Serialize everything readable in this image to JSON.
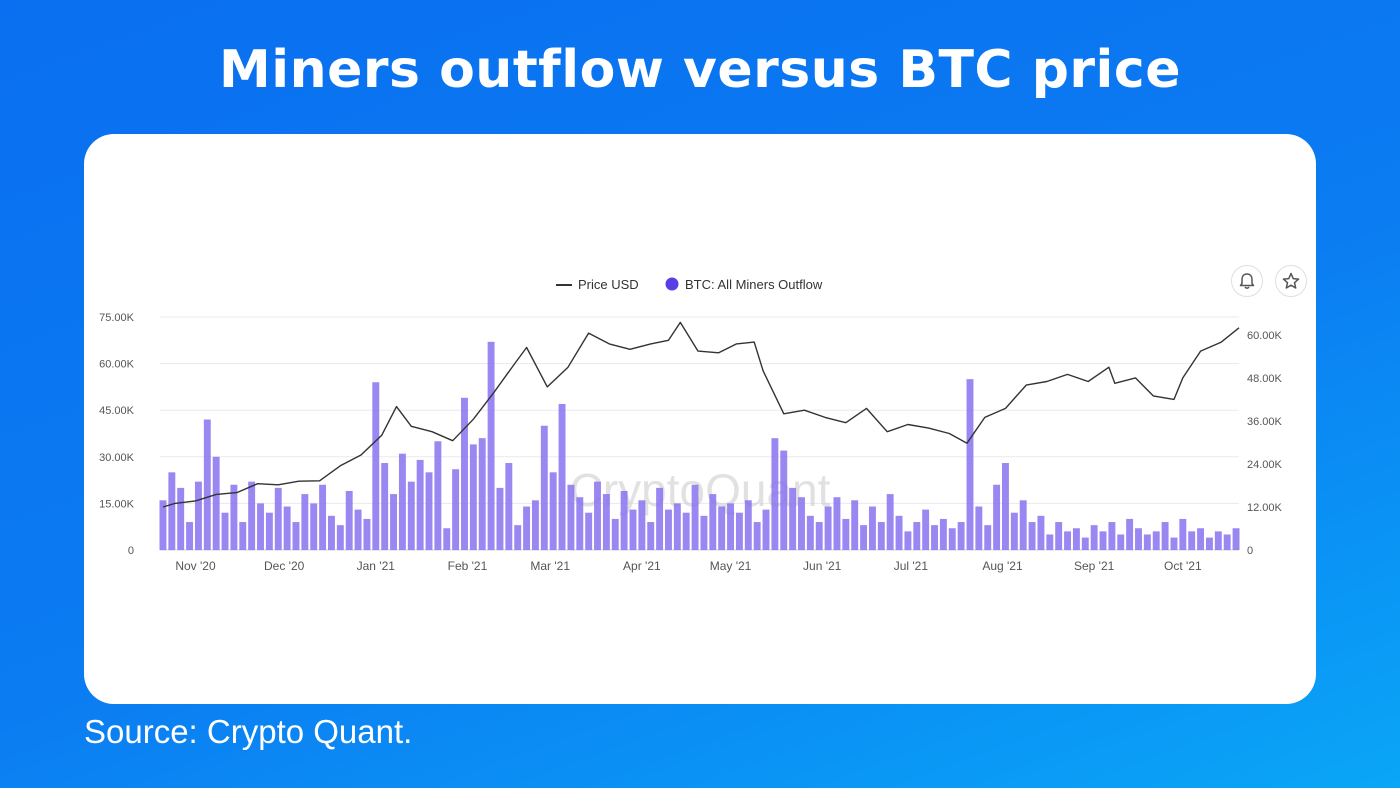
{
  "title": "Miners outflow versus BTC price",
  "source": "Source: Crypto Quant.",
  "watermark": "CryptoQuant",
  "icons": {
    "alert": "bell-icon",
    "favorite": "star-icon"
  },
  "colors": {
    "background": "#0b7cf2",
    "bar": "#8a72f0",
    "price_line": "#333333",
    "legend_dot": "#5b3de8"
  },
  "chart_data": {
    "type": "bar+line",
    "legend_position": "top-center",
    "grid": true,
    "x_range": [
      "2020-10-20",
      "2021-10-20"
    ],
    "x_ticks": [
      {
        "date": "2020-11-01",
        "label": "Nov '20"
      },
      {
        "date": "2020-12-01",
        "label": "Dec '20"
      },
      {
        "date": "2021-01-01",
        "label": "Jan '21"
      },
      {
        "date": "2021-02-01",
        "label": "Feb '21"
      },
      {
        "date": "2021-03-01",
        "label": "Mar '21"
      },
      {
        "date": "2021-04-01",
        "label": "Apr '21"
      },
      {
        "date": "2021-05-01",
        "label": "May '21"
      },
      {
        "date": "2021-06-01",
        "label": "Jun '21"
      },
      {
        "date": "2021-07-01",
        "label": "Jul '21"
      },
      {
        "date": "2021-08-01",
        "label": "Aug '21"
      },
      {
        "date": "2021-09-01",
        "label": "Sep '21"
      },
      {
        "date": "2021-10-01",
        "label": "Oct '21"
      }
    ],
    "y_left": {
      "range": [
        0,
        75000
      ],
      "ticks": [
        0,
        15000,
        30000,
        45000,
        60000,
        75000
      ],
      "tick_labels": [
        "0",
        "15.00K",
        "30.00K",
        "45.00K",
        "60.00K",
        "75.00K"
      ]
    },
    "y_right": {
      "range": [
        0,
        65000
      ],
      "ticks": [
        0,
        12000,
        24000,
        36000,
        48000,
        60000
      ],
      "tick_labels": [
        "0",
        "12.00K",
        "24.00K",
        "36.00K",
        "48.00K",
        "60.00K"
      ]
    },
    "series": [
      {
        "name": "BTC: All Miners Outflow",
        "type": "bar",
        "axis": "left",
        "x": [
          "2020-10-21",
          "2020-10-24",
          "2020-10-27",
          "2020-10-30",
          "2020-11-02",
          "2020-11-05",
          "2020-11-08",
          "2020-11-11",
          "2020-11-14",
          "2020-11-17",
          "2020-11-20",
          "2020-11-23",
          "2020-11-26",
          "2020-11-29",
          "2020-12-02",
          "2020-12-05",
          "2020-12-08",
          "2020-12-11",
          "2020-12-14",
          "2020-12-17",
          "2020-12-20",
          "2020-12-23",
          "2020-12-26",
          "2020-12-29",
          "2021-01-01",
          "2021-01-04",
          "2021-01-07",
          "2021-01-10",
          "2021-01-13",
          "2021-01-16",
          "2021-01-19",
          "2021-01-22",
          "2021-01-25",
          "2021-01-28",
          "2021-01-31",
          "2021-02-03",
          "2021-02-06",
          "2021-02-09",
          "2021-02-12",
          "2021-02-15",
          "2021-02-18",
          "2021-02-21",
          "2021-02-24",
          "2021-02-27",
          "2021-03-02",
          "2021-03-05",
          "2021-03-08",
          "2021-03-11",
          "2021-03-14",
          "2021-03-17",
          "2021-03-20",
          "2021-03-23",
          "2021-03-26",
          "2021-03-29",
          "2021-04-01",
          "2021-04-04",
          "2021-04-07",
          "2021-04-10",
          "2021-04-13",
          "2021-04-16",
          "2021-04-19",
          "2021-04-22",
          "2021-04-25",
          "2021-04-28",
          "2021-05-01",
          "2021-05-04",
          "2021-05-07",
          "2021-05-10",
          "2021-05-13",
          "2021-05-16",
          "2021-05-19",
          "2021-05-22",
          "2021-05-25",
          "2021-05-28",
          "2021-05-31",
          "2021-06-03",
          "2021-06-06",
          "2021-06-09",
          "2021-06-12",
          "2021-06-15",
          "2021-06-18",
          "2021-06-21",
          "2021-06-24",
          "2021-06-27",
          "2021-06-30",
          "2021-07-03",
          "2021-07-06",
          "2021-07-09",
          "2021-07-12",
          "2021-07-15",
          "2021-07-18",
          "2021-07-21",
          "2021-07-24",
          "2021-07-27",
          "2021-07-30",
          "2021-08-02",
          "2021-08-05",
          "2021-08-08",
          "2021-08-11",
          "2021-08-14",
          "2021-08-17",
          "2021-08-20",
          "2021-08-23",
          "2021-08-26",
          "2021-08-29",
          "2021-09-01",
          "2021-09-04",
          "2021-09-07",
          "2021-09-10",
          "2021-09-13",
          "2021-09-16",
          "2021-09-19",
          "2021-09-22",
          "2021-09-25",
          "2021-09-28",
          "2021-10-01",
          "2021-10-04",
          "2021-10-07",
          "2021-10-10",
          "2021-10-13",
          "2021-10-16",
          "2021-10-19"
        ],
        "values": [
          16000,
          25000,
          20000,
          9000,
          22000,
          42000,
          30000,
          12000,
          21000,
          9000,
          22000,
          15000,
          12000,
          20000,
          14000,
          9000,
          18000,
          15000,
          21000,
          11000,
          8000,
          19000,
          13000,
          10000,
          54000,
          28000,
          18000,
          31000,
          22000,
          29000,
          25000,
          35000,
          7000,
          26000,
          49000,
          34000,
          36000,
          67000,
          20000,
          28000,
          8000,
          14000,
          16000,
          40000,
          25000,
          47000,
          21000,
          17000,
          12000,
          22000,
          18000,
          10000,
          19000,
          13000,
          16000,
          9000,
          20000,
          13000,
          15000,
          12000,
          21000,
          11000,
          18000,
          14000,
          15000,
          12000,
          16000,
          9000,
          13000,
          36000,
          32000,
          20000,
          17000,
          11000,
          9000,
          14000,
          17000,
          10000,
          16000,
          8000,
          14000,
          9000,
          18000,
          11000,
          6000,
          9000,
          13000,
          8000,
          10000,
          7000,
          9000,
          55000,
          14000,
          8000,
          21000,
          28000,
          12000,
          16000,
          9000,
          11000,
          5000,
          9000,
          6000,
          7000,
          4000,
          8000,
          6000,
          9000,
          5000,
          10000,
          7000,
          5000,
          6000,
          9000,
          4000,
          10000,
          6000,
          7000,
          4000,
          6000,
          5000,
          7000
        ]
      },
      {
        "name": "Price USD",
        "type": "line",
        "axis": "right",
        "x": [
          "2020-10-21",
          "2020-10-25",
          "2020-11-01",
          "2020-11-08",
          "2020-11-15",
          "2020-11-22",
          "2020-11-29",
          "2020-12-06",
          "2020-12-13",
          "2020-12-20",
          "2020-12-27",
          "2021-01-03",
          "2021-01-08",
          "2021-01-13",
          "2021-01-20",
          "2021-01-27",
          "2021-02-03",
          "2021-02-10",
          "2021-02-17",
          "2021-02-21",
          "2021-02-28",
          "2021-03-07",
          "2021-03-14",
          "2021-03-21",
          "2021-03-28",
          "2021-04-04",
          "2021-04-10",
          "2021-04-14",
          "2021-04-20",
          "2021-04-27",
          "2021-05-03",
          "2021-05-09",
          "2021-05-12",
          "2021-05-19",
          "2021-05-26",
          "2021-06-02",
          "2021-06-09",
          "2021-06-16",
          "2021-06-23",
          "2021-06-30",
          "2021-07-07",
          "2021-07-14",
          "2021-07-20",
          "2021-07-26",
          "2021-08-02",
          "2021-08-09",
          "2021-08-16",
          "2021-08-23",
          "2021-08-30",
          "2021-09-06",
          "2021-09-08",
          "2021-09-15",
          "2021-09-21",
          "2021-09-28",
          "2021-10-01",
          "2021-10-07",
          "2021-10-14",
          "2021-10-20"
        ],
        "values": [
          12000,
          13000,
          13700,
          15500,
          16000,
          18500,
          18200,
          19200,
          19300,
          23500,
          26500,
          32000,
          40000,
          34500,
          33000,
          30500,
          36500,
          44000,
          52000,
          56500,
          45500,
          51000,
          60500,
          57500,
          56000,
          57500,
          58500,
          63500,
          55500,
          55000,
          57500,
          58000,
          50000,
          38000,
          39000,
          37000,
          35500,
          39500,
          33000,
          35000,
          34000,
          32500,
          29800,
          37000,
          39500,
          46000,
          47000,
          49000,
          47000,
          51000,
          46500,
          48000,
          43000,
          42000,
          48000,
          55500,
          58000,
          62000
        ]
      }
    ]
  }
}
